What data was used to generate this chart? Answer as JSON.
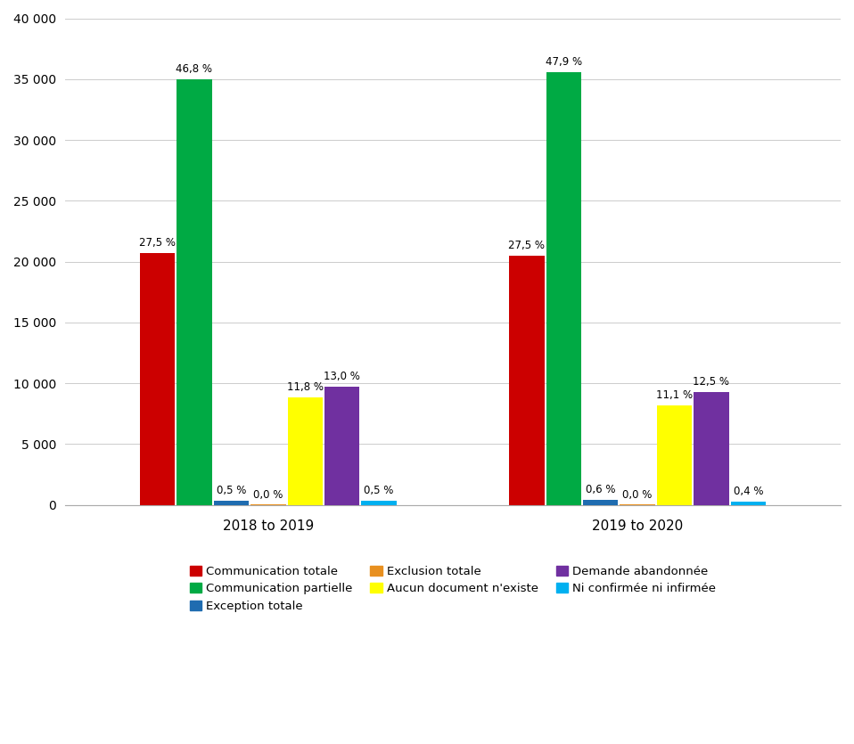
{
  "groups": [
    "2018 to 2019",
    "2019 to 2020"
  ],
  "categories": [
    "Communication totale",
    "Communication partielle",
    "Exception totale",
    "Exclusion totale",
    "Aucun document n'existe",
    "Demande abandonnée",
    "Ni confirmée ni infirmée"
  ],
  "colors": [
    "#cc0000",
    "#00aa44",
    "#1f6cb0",
    "#e89020",
    "#ffff00",
    "#7030a0",
    "#00b0f0"
  ],
  "values_2018": [
    20700,
    35000,
    380,
    20,
    8850,
    9750,
    380
  ],
  "values_2019": [
    20500,
    35600,
    450,
    20,
    8200,
    9300,
    300
  ],
  "labels_2018": [
    "27,5 %",
    "46,8 %",
    "0,5 %",
    "0,0 %",
    "11,8 %",
    "13,0 %",
    "0,5 %"
  ],
  "labels_2019": [
    "27,5 %",
    "47,9 %",
    "0,6 %",
    "0,0 %",
    "11,1 %",
    "12,5 %",
    "0,4 %"
  ],
  "ylim": [
    0,
    40000
  ],
  "yticks": [
    0,
    5000,
    10000,
    15000,
    20000,
    25000,
    30000,
    35000,
    40000
  ],
  "ytick_labels": [
    "0",
    "5 000",
    "10 000",
    "15 000",
    "20 000",
    "25 000",
    "30 000",
    "35 000",
    "40 000"
  ],
  "background_color": "#ffffff",
  "legend_order": [
    "Communication totale",
    "Communication partielle",
    "Exception totale",
    "Exclusion totale",
    "Aucun document n'existe",
    "Demande abandonnée",
    "Ni confirmée ni infirmée"
  ]
}
